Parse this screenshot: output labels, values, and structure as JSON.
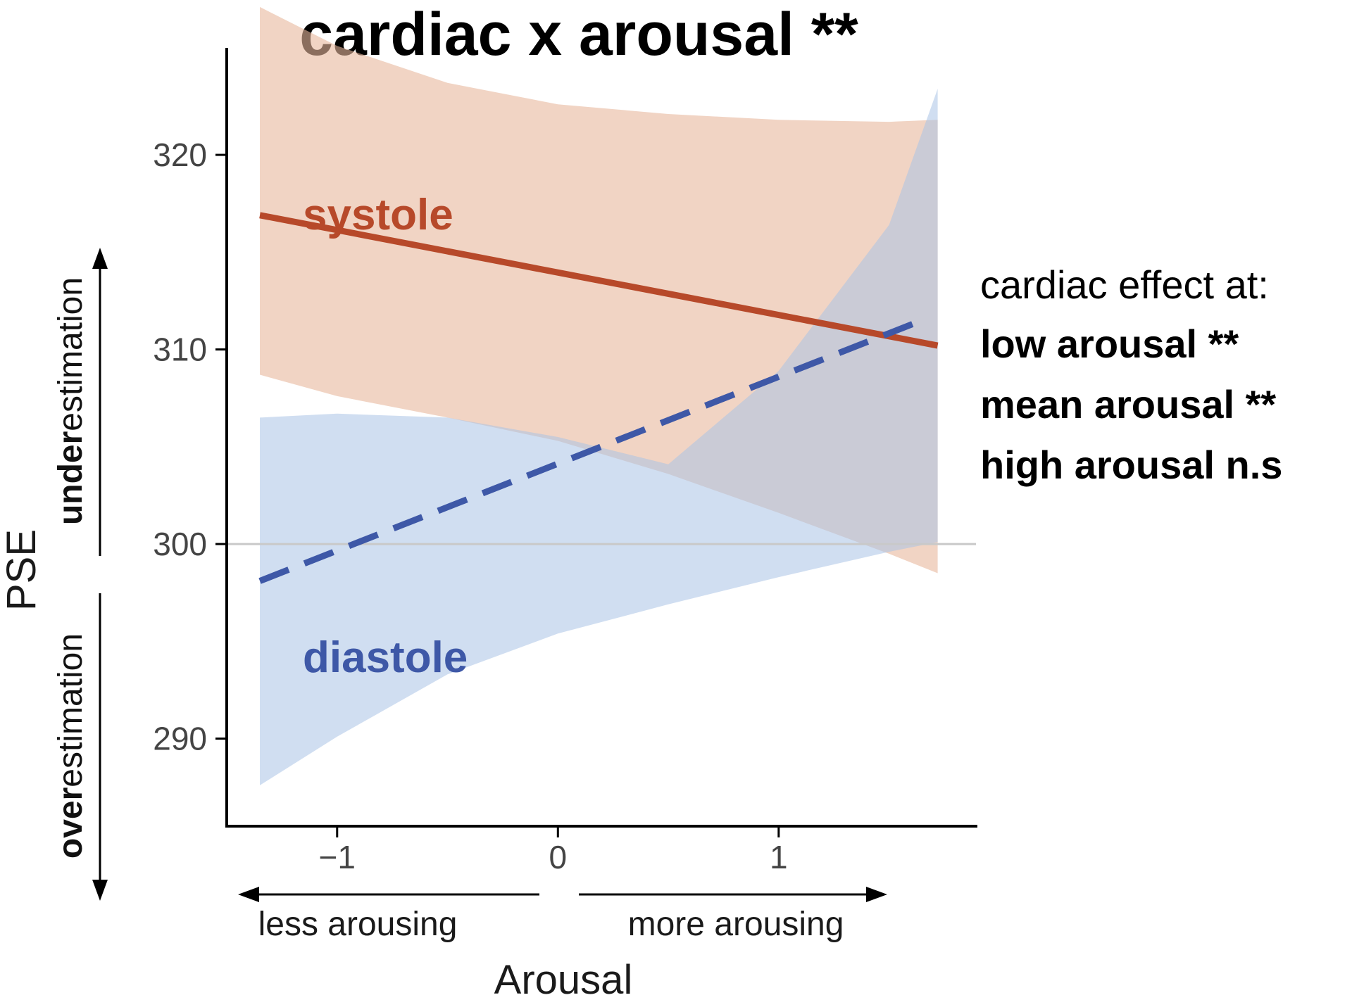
{
  "chart_data": {
    "type": "line",
    "title": "cardiac x arousal **",
    "xlabel": "Arousal",
    "ylabel": "PSE",
    "xlim": [
      -1.5,
      1.9
    ],
    "ylim": [
      285.5,
      325.5
    ],
    "xticks": [
      -1,
      0,
      1
    ],
    "xtick_labels": [
      "−1",
      "0",
      "1"
    ],
    "yticks": [
      290,
      300,
      310,
      320
    ],
    "ytick_labels": [
      "290",
      "300",
      "310",
      "320"
    ],
    "reference_line": 300,
    "grid": false,
    "x_direction_labels": {
      "left": "less arousing",
      "right": "more arousing"
    },
    "y_direction_labels": {
      "up_bold": "under",
      "up_rest": "estimation",
      "down_bold": "over",
      "down_rest": "estimation"
    },
    "series": [
      {
        "name": "systole",
        "color": "#b7492a",
        "band_color": "#e8b89c",
        "line_style": "solid",
        "x": [
          -1.35,
          1.72
        ],
        "y": [
          316.9,
          310.2
        ],
        "ci": {
          "x": [
            -1.35,
            -1.0,
            -0.5,
            0.0,
            0.5,
            1.0,
            1.5,
            1.72
          ],
          "lower": [
            308.7,
            307.6,
            306.5,
            305.3,
            303.6,
            301.6,
            299.5,
            298.5
          ],
          "upper": [
            327.6,
            325.6,
            323.7,
            322.6,
            322.1,
            321.8,
            321.7,
            321.8
          ]
        }
      },
      {
        "name": "diastole",
        "color": "#3e58a7",
        "band_color": "#a9c3e6",
        "line_style": "dashed",
        "x": [
          -1.35,
          1.65
        ],
        "y": [
          298.1,
          311.5
        ],
        "ci": {
          "x": [
            -1.35,
            -1.0,
            -0.5,
            0.0,
            0.5,
            1.0,
            1.5,
            1.72
          ],
          "lower": [
            287.6,
            290.1,
            293.3,
            295.4,
            296.9,
            298.3,
            299.6,
            300.1
          ],
          "upper": [
            306.5,
            306.7,
            306.5,
            305.5,
            304.1,
            308.9,
            316.4,
            323.4
          ]
        }
      }
    ],
    "annotation": {
      "heading": "cardiac effect at:",
      "lines": [
        "low arousal **",
        "mean arousal **",
        "high arousal n.s"
      ]
    }
  }
}
